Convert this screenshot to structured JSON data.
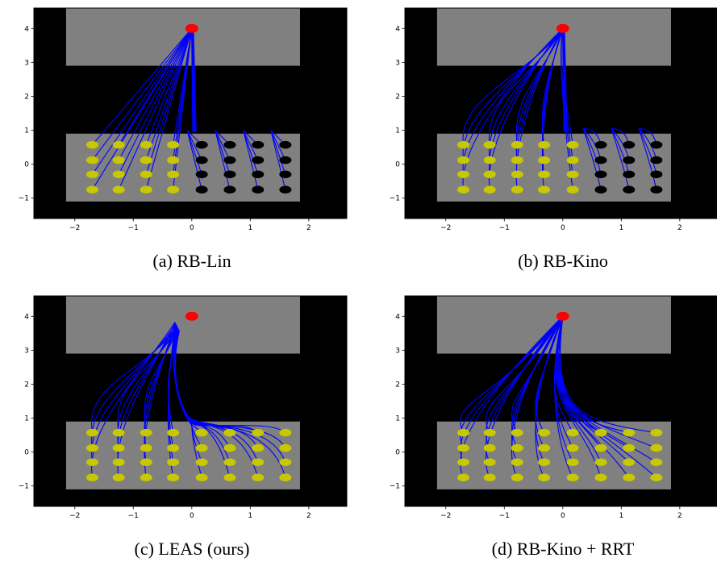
{
  "colors": {
    "wall": "#000000",
    "free_space": "#808080",
    "start": "#ff0000",
    "goal_reached": "#c8c800",
    "goal_failed": "#000000",
    "trajectory": "#0000ff"
  },
  "chart_data": [
    {
      "type": "scatter",
      "caption": "(a) RB-Lin",
      "xlim": [
        -2.7,
        2.65
      ],
      "ylim": [
        -1.6,
        4.6
      ],
      "xticks": [
        -2,
        -1,
        0,
        1,
        2
      ],
      "yticks": [
        -1,
        0,
        1,
        2,
        3,
        4
      ],
      "xtick_labels": [
        "−2",
        "−1",
        "0",
        "1",
        "2"
      ],
      "ytick_labels": [
        "−1",
        "0",
        "1",
        "2",
        "3",
        "4"
      ],
      "free_regions": [
        [
          -2.15,
          2.9,
          1.85,
          4.6
        ],
        [
          -2.15,
          -1.1,
          1.85,
          0.9
        ]
      ],
      "start": [
        0,
        4
      ],
      "goal_x": [
        -1.7,
        -1.25,
        -0.78,
        -0.32,
        0.17,
        0.65,
        1.13,
        1.6
      ],
      "goal_y": [
        -0.75,
        -0.3,
        0.12,
        0.57
      ],
      "reached_columns": 4,
      "trajectory_style": "linear"
    },
    {
      "type": "scatter",
      "caption": "(b) RB-Kino",
      "xlim": [
        -2.7,
        2.65
      ],
      "ylim": [
        -1.6,
        4.6
      ],
      "xticks": [
        -2,
        -1,
        0,
        1,
        2
      ],
      "yticks": [
        -1,
        0,
        1,
        2,
        3,
        4
      ],
      "xtick_labels": [
        "−2",
        "−1",
        "0",
        "1",
        "2"
      ],
      "ytick_labels": [
        "−1",
        "0",
        "1",
        "2",
        "3",
        "4"
      ],
      "free_regions": [
        [
          -2.15,
          2.9,
          1.85,
          4.6
        ],
        [
          -2.15,
          -1.1,
          1.85,
          0.9
        ]
      ],
      "start": [
        0,
        4
      ],
      "goal_x": [
        -1.7,
        -1.25,
        -0.78,
        -0.32,
        0.17,
        0.65,
        1.13,
        1.6
      ],
      "goal_y": [
        -0.75,
        -0.3,
        0.12,
        0.57
      ],
      "reached_columns": 5,
      "trajectory_style": "kino"
    },
    {
      "type": "scatter",
      "caption": "(c) LEAS (ours)",
      "xlim": [
        -2.7,
        2.65
      ],
      "ylim": [
        -1.6,
        4.6
      ],
      "xticks": [
        -2,
        -1,
        0,
        1,
        2
      ],
      "yticks": [
        -1,
        0,
        1,
        2,
        3,
        4
      ],
      "xtick_labels": [
        "−2",
        "−1",
        "0",
        "1",
        "2"
      ],
      "ytick_labels": [
        "−1",
        "0",
        "1",
        "2",
        "3",
        "4"
      ],
      "free_regions": [
        [
          -2.15,
          2.9,
          1.85,
          4.6
        ],
        [
          -2.15,
          -1.1,
          1.85,
          0.9
        ]
      ],
      "start": [
        0,
        4
      ],
      "goal_x": [
        -1.7,
        -1.25,
        -0.78,
        -0.32,
        0.17,
        0.65,
        1.13,
        1.6
      ],
      "goal_y": [
        -0.75,
        -0.3,
        0.12,
        0.57
      ],
      "reached_columns": 8,
      "trajectory_style": "leas"
    },
    {
      "type": "scatter",
      "caption": "(d) RB-Kino + RRT",
      "xlim": [
        -2.7,
        2.65
      ],
      "ylim": [
        -1.6,
        4.6
      ],
      "xticks": [
        -2,
        -1,
        0,
        1,
        2
      ],
      "yticks": [
        -1,
        0,
        1,
        2,
        3,
        4
      ],
      "xtick_labels": [
        "−2",
        "−1",
        "0",
        "1",
        "2"
      ],
      "ytick_labels": [
        "−1",
        "0",
        "1",
        "2",
        "3",
        "4"
      ],
      "free_regions": [
        [
          -2.15,
          2.9,
          1.85,
          4.6
        ],
        [
          -2.15,
          -1.1,
          1.85,
          0.9
        ]
      ],
      "start": [
        0,
        4
      ],
      "goal_x": [
        -1.7,
        -1.25,
        -0.78,
        -0.32,
        0.17,
        0.65,
        1.13,
        1.6
      ],
      "goal_y": [
        -0.75,
        -0.3,
        0.12,
        0.57
      ],
      "reached_columns": 8,
      "trajectory_style": "rrt"
    }
  ]
}
